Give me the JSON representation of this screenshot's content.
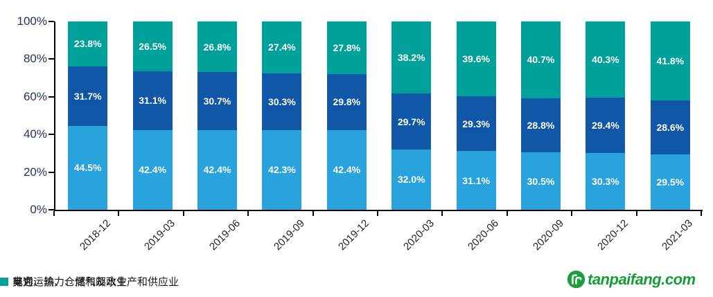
{
  "chart_data": {
    "type": "bar",
    "subtype": "stacked-100-percent",
    "categories": [
      "2018-12",
      "2019-03",
      "2019-06",
      "2019-09",
      "2019-12",
      "2020-03",
      "2020-06",
      "2020-09",
      "2020-12",
      "2021-03"
    ],
    "series": [
      {
        "name": "交通运输、仓储和邮政业",
        "color": "#29A3DE",
        "values": [
          44.5,
          42.4,
          42.4,
          42.3,
          42.4,
          32.0,
          31.1,
          30.5,
          30.3,
          29.5
        ]
      },
      {
        "name": "电力、热力、燃气及水生产和供应业",
        "color": "#1057A8",
        "values": [
          31.7,
          31.1,
          30.7,
          30.3,
          29.8,
          29.7,
          29.3,
          28.8,
          29.4,
          28.6
        ]
      },
      {
        "name": "其它",
        "color": "#00A09B",
        "legend_obscured_by_watermark": true,
        "values": [
          23.8,
          26.5,
          26.8,
          27.4,
          27.8,
          38.2,
          39.6,
          40.7,
          40.3,
          41.8
        ]
      }
    ],
    "title": "",
    "xlabel": "",
    "ylabel": "",
    "ylim": [
      0,
      100
    ],
    "yticks": [
      "0%",
      "20%",
      "40%",
      "60%",
      "80%",
      "100%"
    ],
    "value_suffix": "%",
    "grid": false,
    "legend_position": "bottom"
  },
  "watermark": {
    "text": "tanpaifang.com",
    "color": "#159C36",
    "logo": "tanpaifang-logo-icon"
  }
}
